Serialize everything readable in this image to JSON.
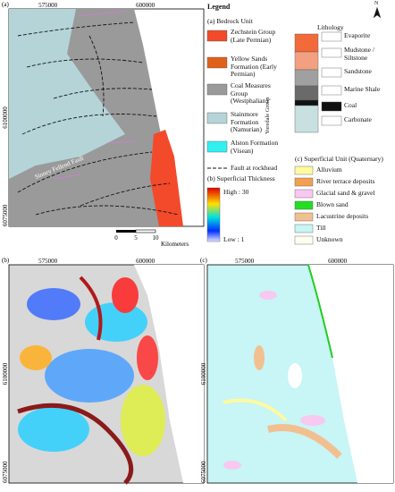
{
  "legend": {
    "title": "Legend",
    "north": "N",
    "bedrock": {
      "heading": "(a) Bedrock Unit",
      "items": [
        "Zechstein Group (Late Permian)",
        "Yellow Sands Formation (Early Permian)",
        "Coal Measures Group (Westphalian)",
        "Stainmore Formation (Namurian)",
        "Alston Formation (Visean)",
        "Fault at rockhead"
      ],
      "group": "Yoredale Group"
    },
    "lithology": {
      "heading": "Lithology",
      "items": [
        "Evaporite",
        "Mudstone / Siltstone",
        "Sandstone",
        "Marine Shale",
        "Coal",
        "Carbonate"
      ]
    },
    "thickness": {
      "heading": "(b) Superficial Thickness",
      "high": "High : 30",
      "low": "Low : 1"
    },
    "superficial": {
      "heading": "(c) Superficial Unit (Quaternary)",
      "items": [
        "Alluvium",
        "River terrace deposits",
        "Glacial sand & gravel",
        "Blown sand",
        "Lacustrine deposits",
        "Till",
        "Unknown"
      ]
    }
  },
  "panels": [
    {
      "label": "(a)",
      "x_ticks": [
        "575000",
        "600000"
      ],
      "y_ticks": [
        "6100000",
        "6075000"
      ],
      "fault_name": "Sinney Fellend Fault",
      "scale": {
        "ticks": [
          "0",
          "5",
          "10"
        ],
        "unit": "Kilometers"
      }
    },
    {
      "label": "(b)",
      "x_ticks": [
        "575000",
        "600000"
      ],
      "y_ticks": [
        "6100000",
        "6075000"
      ]
    },
    {
      "label": "(c)",
      "x_ticks": [
        "575000",
        "600000"
      ],
      "y_ticks": [
        "6100000",
        "6075000"
      ]
    }
  ]
}
